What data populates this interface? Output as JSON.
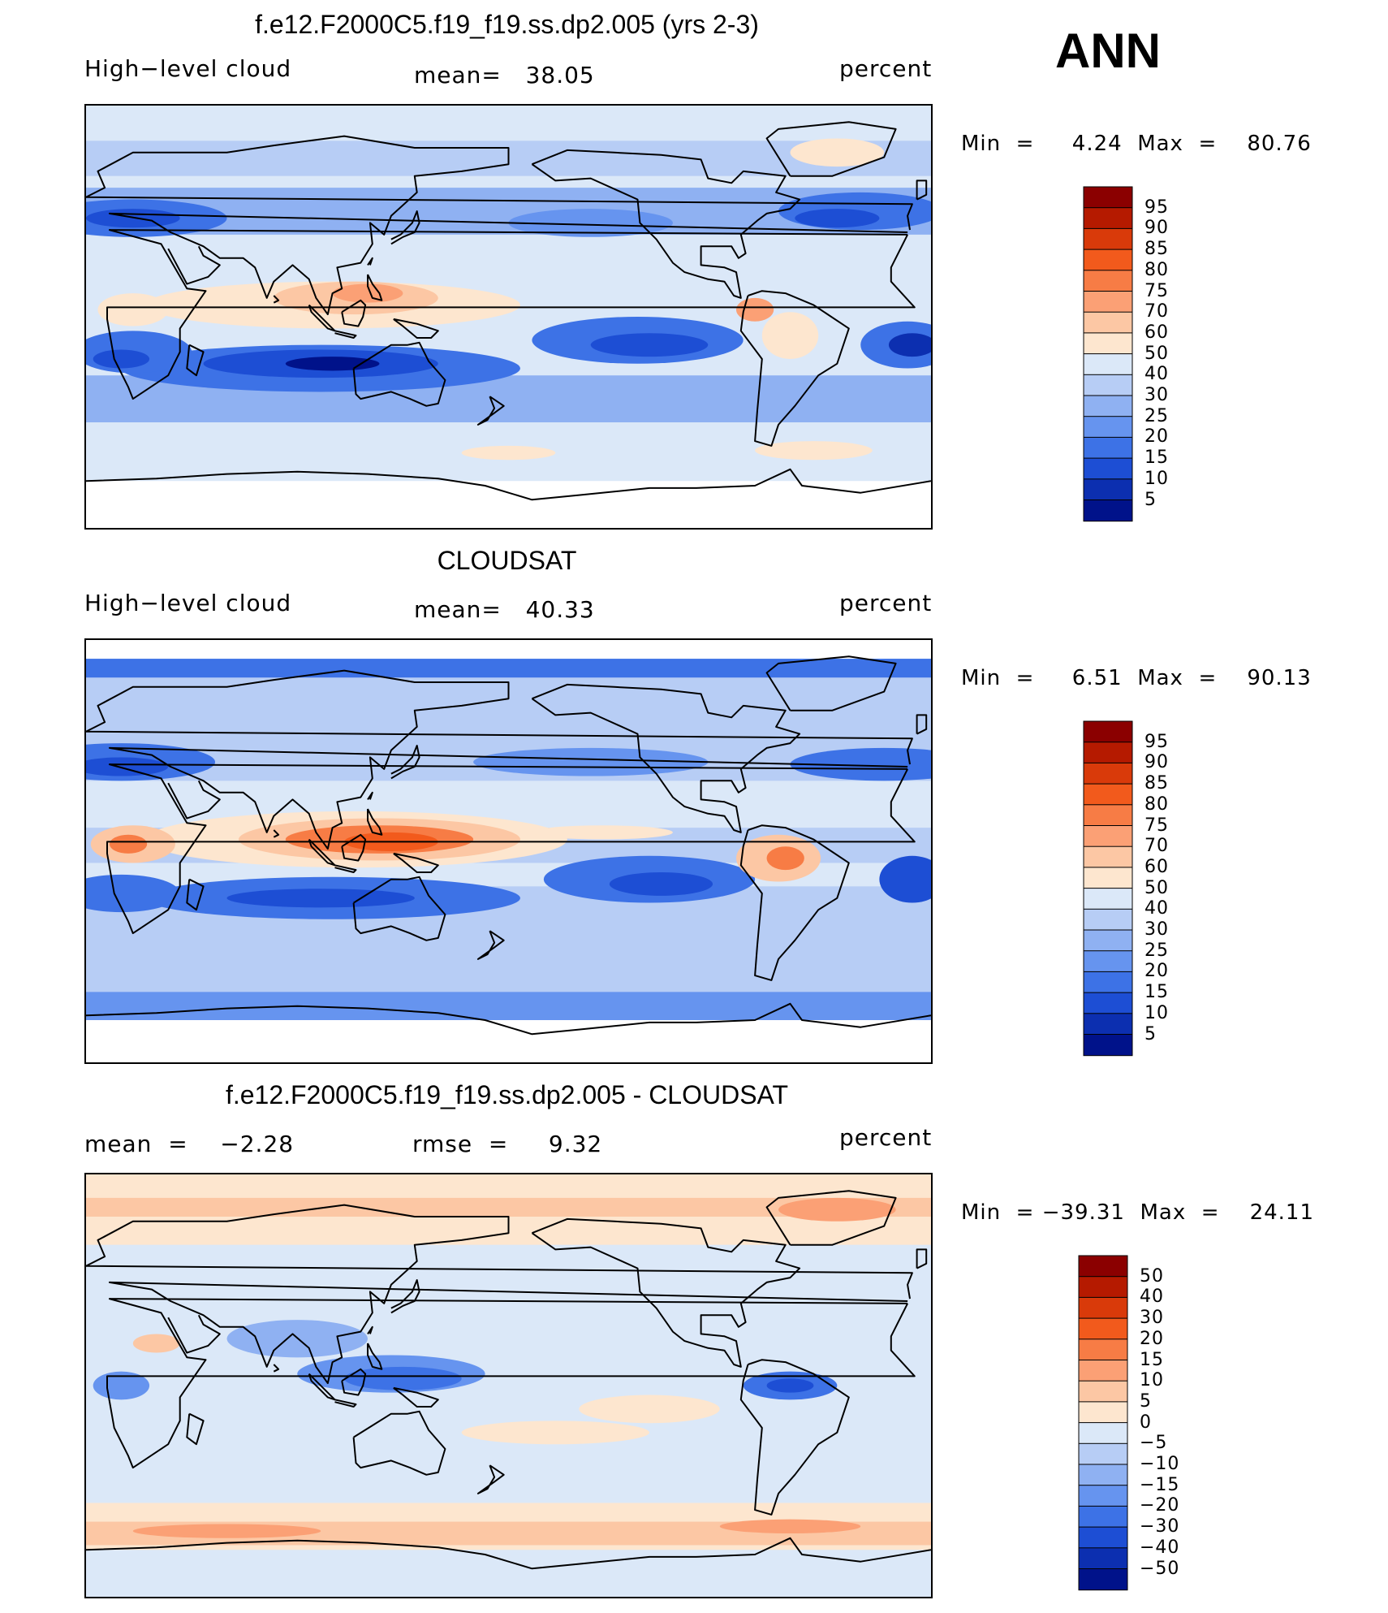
{
  "season": "ANN",
  "panels": [
    {
      "title": "f.e12.F2000C5.f19_f19.ss.dp2.005 (yrs 2-3)",
      "left_label": "High−level cloud",
      "center_label": "mean=   38.05",
      "right_label": "percent",
      "minmax": "Min  =     4.24  Max  =    80.76",
      "colorbar": {
        "labels": [
          "95",
          "90",
          "85",
          "80",
          "75",
          "70",
          "60",
          "50",
          "40",
          "30",
          "25",
          "20",
          "15",
          "10",
          "5"
        ],
        "colors": [
          "#8b0000",
          "#b51a00",
          "#d93a0a",
          "#f25a1c",
          "#f77c45",
          "#fba075",
          "#fcc7a4",
          "#fde6cf",
          "#dbe8f8",
          "#b7cdf5",
          "#8fb1f2",
          "#6694ef",
          "#3d72e6",
          "#1d4ed4",
          "#0c2fb0",
          "#00128a"
        ]
      },
      "map_style": "model"
    },
    {
      "title": "CLOUDSAT",
      "left_label": "High−level cloud",
      "center_label": "mean=   40.33",
      "right_label": "percent",
      "minmax": "Min  =     6.51  Max  =    90.13",
      "colorbar": {
        "labels": [
          "95",
          "90",
          "85",
          "80",
          "75",
          "70",
          "60",
          "50",
          "40",
          "30",
          "25",
          "20",
          "15",
          "10",
          "5"
        ],
        "colors": [
          "#8b0000",
          "#b51a00",
          "#d93a0a",
          "#f25a1c",
          "#f77c45",
          "#fba075",
          "#fcc7a4",
          "#fde6cf",
          "#dbe8f8",
          "#b7cdf5",
          "#8fb1f2",
          "#6694ef",
          "#3d72e6",
          "#1d4ed4",
          "#0c2fb0",
          "#00128a"
        ]
      },
      "map_style": "obs"
    },
    {
      "title": "f.e12.F2000C5.f19_f19.ss.dp2.005 - CLOUDSAT",
      "left_label": "mean  =    −2.28",
      "center_label": "rmse  =     9.32",
      "right_label": "percent",
      "minmax": "Min  = −39.31  Max  =    24.11",
      "colorbar": {
        "labels": [
          "50",
          "40",
          "30",
          "20",
          "15",
          "10",
          "5",
          "0",
          "−5",
          "−10",
          "−15",
          "−20",
          "−30",
          "−40",
          "−50"
        ],
        "colors": [
          "#8b0000",
          "#b51a00",
          "#d93a0a",
          "#f25a1c",
          "#f77c45",
          "#fba075",
          "#fcc7a4",
          "#fde6cf",
          "#dbe8f8",
          "#b7cdf5",
          "#8fb1f2",
          "#6694ef",
          "#3d72e6",
          "#1d4ed4",
          "#0c2fb0",
          "#00128a"
        ]
      },
      "map_style": "diff"
    }
  ]
}
